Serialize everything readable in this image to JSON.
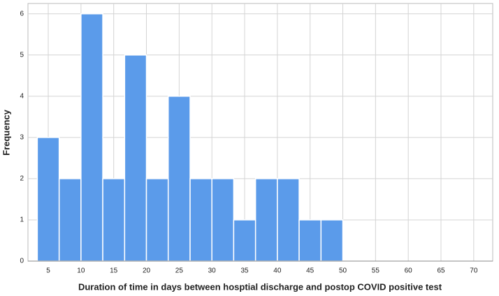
{
  "chart_data": {
    "type": "histogram",
    "x_label": "Duration of time in days between hosptial discharge and postop COVID positive test",
    "y_label": "Frequency",
    "bins": [
      3.33,
      6.67,
      10,
      13.33,
      16.67,
      20,
      23.33,
      26.67,
      30,
      33.33,
      36.67,
      40,
      43.33,
      46.67,
      50
    ],
    "counts": [
      3,
      2,
      6,
      2,
      5,
      2,
      4,
      2,
      2,
      1,
      2,
      2,
      1,
      1
    ],
    "color": "#5b9bea",
    "xlim": [
      1.9,
      72.9
    ],
    "xticks": [
      5,
      10,
      15,
      20,
      25,
      30,
      35,
      40,
      45,
      50,
      55,
      60,
      65,
      70
    ],
    "ylim": [
      0,
      6.25
    ],
    "yticks": [
      0,
      1,
      2,
      3,
      4,
      5,
      6
    ],
    "grid": true
  }
}
